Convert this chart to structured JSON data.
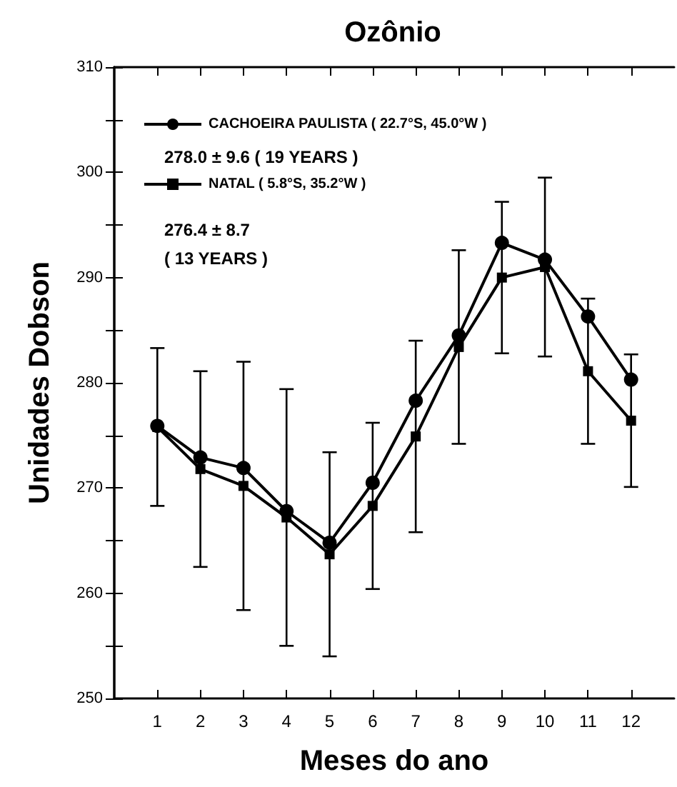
{
  "chart_data": {
    "type": "line",
    "title": "Ozônio",
    "xlabel": "Meses do ano",
    "ylabel": "Unidades Dobson",
    "x": [
      1,
      2,
      3,
      4,
      5,
      6,
      7,
      8,
      9,
      10,
      11,
      12
    ],
    "xlim": [
      0,
      13
    ],
    "xticks": [
      1,
      2,
      3,
      4,
      5,
      6,
      7,
      8,
      9,
      10,
      11,
      12
    ],
    "ylim": [
      250,
      310
    ],
    "yticks": [
      250,
      260,
      270,
      280,
      290,
      300,
      310
    ],
    "series": [
      {
        "name": "CACHOEIRA PAULISTA ( 22.7°S, 45.0°W )",
        "color": "#000000",
        "marker": "circle",
        "values": [
          275.9,
          272.9,
          271.9,
          267.8,
          264.8,
          270.5,
          278.3,
          284.5,
          293.3,
          291.7,
          286.3,
          280.3
        ]
      },
      {
        "name": "NATAL ( 5.8°S, 35.2°W )",
        "color": "#000000",
        "marker": "square",
        "values": [
          275.8,
          271.8,
          270.2,
          267.2,
          263.7,
          268.3,
          274.9,
          283.4,
          290.0,
          291.0,
          281.1,
          276.4
        ],
        "errors": [
          7.5,
          9.3,
          11.8,
          12.2,
          9.7,
          7.9,
          9.1,
          9.2,
          7.2,
          8.5,
          6.9,
          6.3
        ]
      }
    ],
    "legend": "top left",
    "grid": false,
    "annotations": [
      "278.0 ± 9.6 ( 19 YEARS )",
      "276.4 ± 8.7",
      "( 13 YEARS )"
    ]
  }
}
